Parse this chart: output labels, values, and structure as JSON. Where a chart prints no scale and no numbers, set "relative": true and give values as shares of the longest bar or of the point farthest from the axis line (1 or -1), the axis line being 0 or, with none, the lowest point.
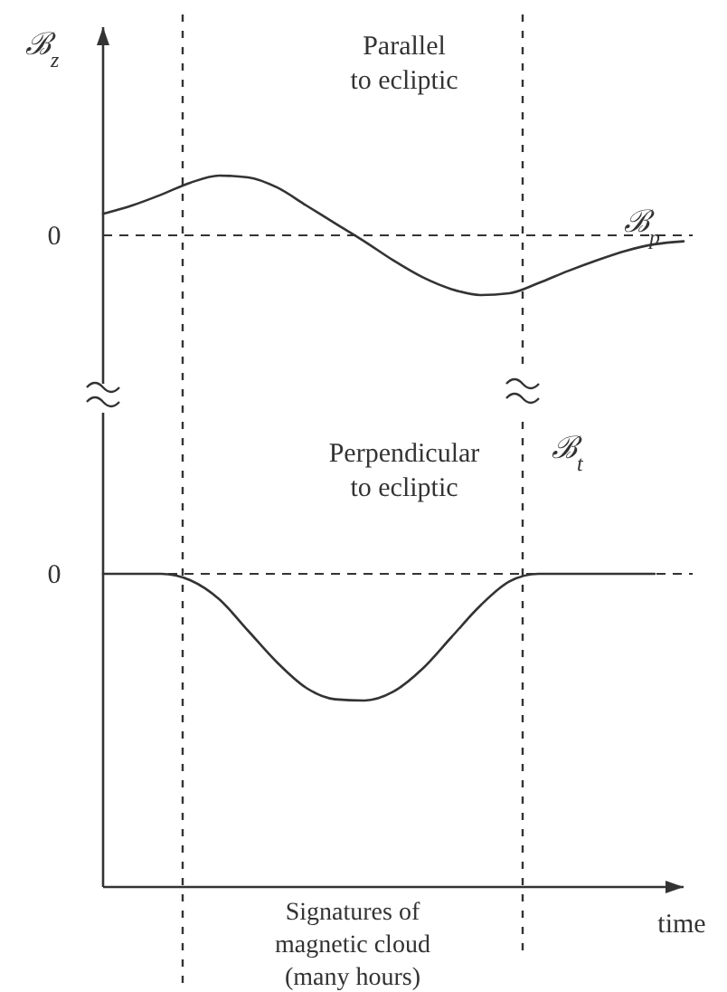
{
  "chart_data": [
    {
      "type": "line",
      "title": "Parallel to ecliptic",
      "ylabel": "ℬ$_{z}$",
      "relative": true,
      "categories": [
        null,
        null,
        null,
        null,
        null,
        null,
        null,
        null,
        null,
        null,
        null,
        null,
        null,
        null,
        null,
        null,
        null,
        null,
        null,
        null,
        null
      ],
      "series": [
        {
          "name": "ℬ$_{p}$",
          "color": "#333333",
          "values": [
            0.36,
            0.5,
            0.68,
            0.88,
            1.0,
            0.97,
            0.8,
            0.5,
            0.2,
            -0.1,
            -0.42,
            -0.7,
            -0.9,
            -1.0,
            -0.97,
            -0.8,
            -0.6,
            -0.42,
            -0.26,
            -0.15,
            -0.1
          ]
        }
      ],
      "ref_lines": [
        {
          "axis": "y",
          "value": 0,
          "label": "0",
          "line_style": "dashed"
        }
      ]
    },
    {
      "type": "line",
      "title": "Perpendicular to ecliptic",
      "xlabel": "time",
      "relative": true,
      "categories": [
        null,
        null,
        null,
        null,
        null,
        null,
        null,
        null,
        null,
        null,
        null,
        null,
        null,
        null,
        null,
        null,
        null,
        null,
        null,
        null,
        null
      ],
      "series": [
        {
          "name": "ℬ$_{t}$",
          "color": "#333333",
          "values": [
            0,
            0,
            0,
            -0.05,
            -0.2,
            -0.45,
            -0.7,
            -0.9,
            -0.99,
            -1,
            -0.93,
            -0.75,
            -0.5,
            -0.25,
            -0.06,
            0,
            0,
            0,
            0,
            0,
            null
          ]
        }
      ],
      "ref_lines": [
        {
          "axis": "y",
          "value": 0,
          "label": "0",
          "line_style": "dashed"
        }
      ],
      "annotations": [
        "Signatures of magnetic cloud (many hours)"
      ]
    }
  ]
}
